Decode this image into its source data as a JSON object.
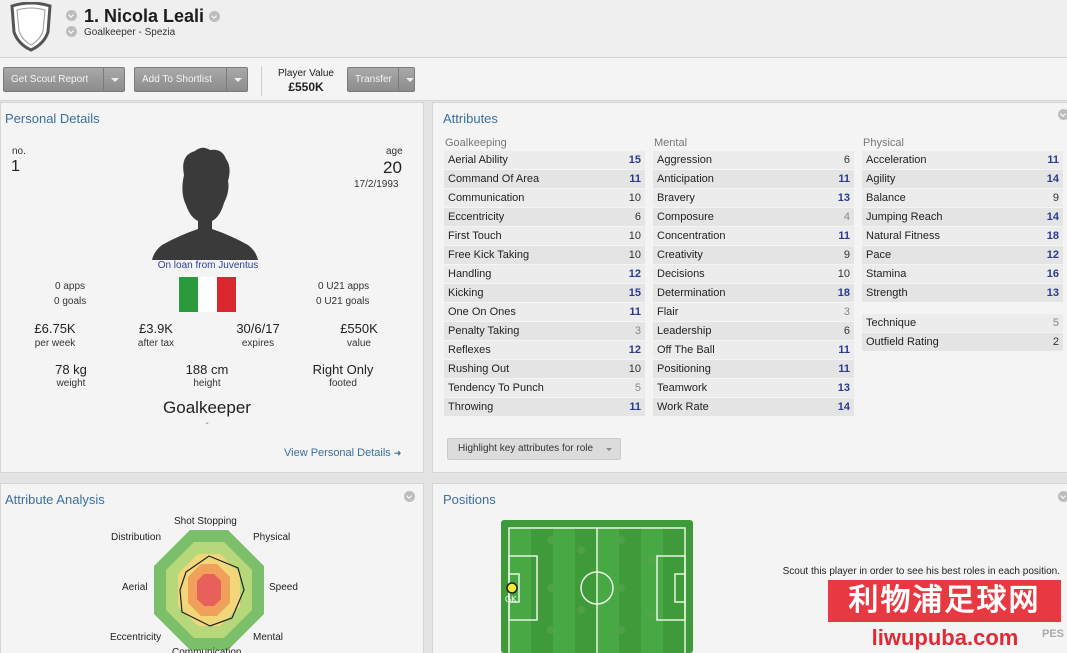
{
  "header": {
    "name": "1. Nicola Leali",
    "subtitle": "Goalkeeper - Spezia"
  },
  "toolbar": {
    "scout_label": "Get Scout Report",
    "shortlist_label": "Add To Shortlist",
    "player_value_label": "Player Value",
    "player_value": "£550K",
    "transfer_label": "Transfer"
  },
  "personal": {
    "title": "Personal Details",
    "no_label": "no.",
    "no_value": "1",
    "age_label": "age",
    "age_value": "20",
    "dob": "17/2/1993",
    "loan": "On loan from Juventus",
    "apps": "0 apps",
    "goals": "0 goals",
    "u21_apps": "0 U21 apps",
    "u21_goals": "0 U21 goals",
    "stats": [
      {
        "value": "£6.75K",
        "label": "per week"
      },
      {
        "value": "£3.9K",
        "label": "after tax"
      },
      {
        "value": "30/6/17",
        "label": "expires"
      },
      {
        "value": "£550K",
        "label": "value"
      }
    ],
    "body": [
      {
        "value": "78 kg",
        "label": "weight"
      },
      {
        "value": "188 cm",
        "label": "height"
      },
      {
        "value": "Right Only",
        "label": "footed"
      }
    ],
    "position": "Goalkeeper",
    "position_dash": "-",
    "view_link": "View Personal Details"
  },
  "flag_colors": [
    "#2a9a3c",
    "#ffffff",
    "#d8272e"
  ],
  "attributes": {
    "title": "Attributes",
    "columns": [
      {
        "heading": "Goalkeeping",
        "rows": [
          {
            "name": "Aerial Ability",
            "value": "15",
            "style": "hi"
          },
          {
            "name": "Command Of Area",
            "value": "11",
            "style": "hi"
          },
          {
            "name": "Communication",
            "value": "10",
            "style": ""
          },
          {
            "name": "Eccentricity",
            "value": "6",
            "style": ""
          },
          {
            "name": "First Touch",
            "value": "10",
            "style": ""
          },
          {
            "name": "Free Kick Taking",
            "value": "10",
            "style": ""
          },
          {
            "name": "Handling",
            "value": "12",
            "style": "hi"
          },
          {
            "name": "Kicking",
            "value": "15",
            "style": "hi"
          },
          {
            "name": "One On Ones",
            "value": "11",
            "style": "hi"
          },
          {
            "name": "Penalty Taking",
            "value": "3",
            "style": "lo"
          },
          {
            "name": "Reflexes",
            "value": "12",
            "style": "hi"
          },
          {
            "name": "Rushing Out",
            "value": "10",
            "style": ""
          },
          {
            "name": "Tendency To Punch",
            "value": "5",
            "style": "lo"
          },
          {
            "name": "Throwing",
            "value": "11",
            "style": "hi"
          }
        ]
      },
      {
        "heading": "Mental",
        "rows": [
          {
            "name": "Aggression",
            "value": "6",
            "style": ""
          },
          {
            "name": "Anticipation",
            "value": "11",
            "style": "hi"
          },
          {
            "name": "Bravery",
            "value": "13",
            "style": "hi"
          },
          {
            "name": "Composure",
            "value": "4",
            "style": "lo"
          },
          {
            "name": "Concentration",
            "value": "11",
            "style": "hi"
          },
          {
            "name": "Creativity",
            "value": "9",
            "style": ""
          },
          {
            "name": "Decisions",
            "value": "10",
            "style": ""
          },
          {
            "name": "Determination",
            "value": "18",
            "style": "hi"
          },
          {
            "name": "Flair",
            "value": "3",
            "style": "lo"
          },
          {
            "name": "Leadership",
            "value": "6",
            "style": ""
          },
          {
            "name": "Off The Ball",
            "value": "11",
            "style": "hi"
          },
          {
            "name": "Positioning",
            "value": "11",
            "style": "hi"
          },
          {
            "name": "Teamwork",
            "value": "13",
            "style": "hi"
          },
          {
            "name": "Work Rate",
            "value": "14",
            "style": "hi"
          }
        ]
      },
      {
        "heading": "Physical",
        "rows": [
          {
            "name": "Acceleration",
            "value": "11",
            "style": "hi"
          },
          {
            "name": "Agility",
            "value": "14",
            "style": "hi"
          },
          {
            "name": "Balance",
            "value": "9",
            "style": ""
          },
          {
            "name": "Jumping Reach",
            "value": "14",
            "style": "hi"
          },
          {
            "name": "Natural Fitness",
            "value": "18",
            "style": "hi"
          },
          {
            "name": "Pace",
            "value": "12",
            "style": "hi"
          },
          {
            "name": "Stamina",
            "value": "16",
            "style": "hi"
          },
          {
            "name": "Strength",
            "value": "13",
            "style": "hi"
          }
        ],
        "extra": [
          {
            "name": "Technique",
            "value": "5",
            "style": "lo"
          },
          {
            "name": "Outfield Rating",
            "value": "2",
            "style": ""
          }
        ]
      }
    ],
    "highlight_label": "Highlight key attributes for role"
  },
  "analysis": {
    "title": "Attribute Analysis",
    "labels": {
      "shot_stopping": "Shot Stopping",
      "physical": "Physical",
      "speed": "Speed",
      "mental": "Mental",
      "communication": "Communication",
      "eccentricity": "Eccentricity",
      "aerial": "Aerial",
      "distribution": "Distribution"
    }
  },
  "positions": {
    "title": "Positions",
    "gk_label": "GK",
    "message": "Scout this player in order to see his best roles in each position."
  },
  "watermark": {
    "cn": "利物浦足球网",
    "url": "liwupuba.com",
    "badge": "PES"
  }
}
